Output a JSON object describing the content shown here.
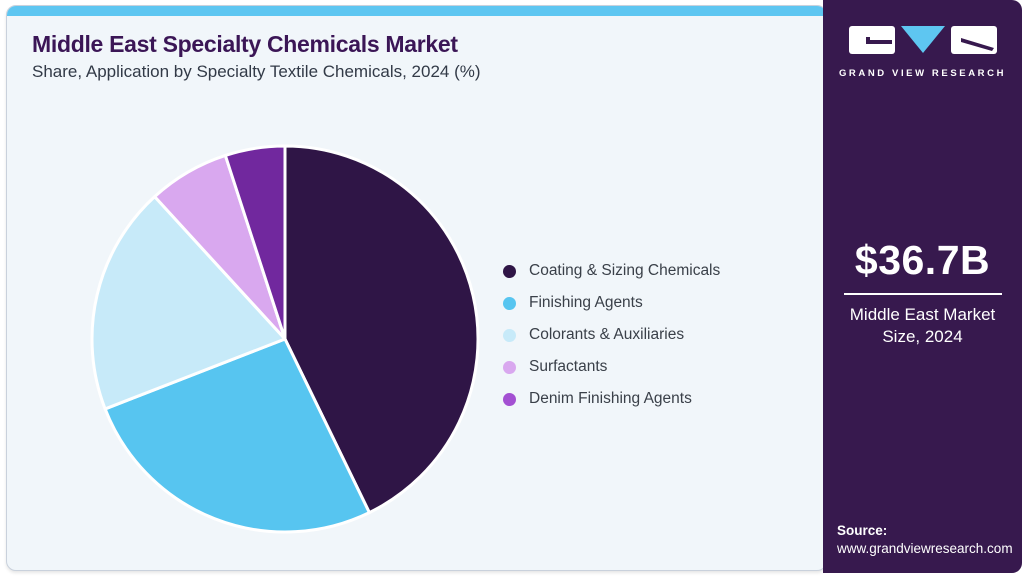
{
  "page": {
    "title": "Middle East Specialty Chemicals Market",
    "subtitle": "Share, Application by Specialty Textile Chemicals, 2024 (%)"
  },
  "colors": {
    "accent_bar": "#5ec6f1",
    "card_bg": "#f1f6fa",
    "card_border": "#c9d1dc",
    "title_text": "#3b1656",
    "subtitle_text": "#323a47",
    "legend_text": "#3a4049",
    "sidebar_bg": "#37194e",
    "sidebar_text": "#ffffff",
    "pie_stroke": "#ffffff"
  },
  "chart_data": {
    "type": "pie",
    "title": "Middle East Specialty Chemicals Market Share, Application by Specialty Textile Chemicals, 2024 (%)",
    "categories": [
      "Coating & Sizing Chemicals",
      "Finishing Agents",
      "Colorants & Auxiliaries",
      "Surfactants",
      "Denim Finishing Agents"
    ],
    "values": [
      42.8,
      26.3,
      19.1,
      6.8,
      5.0
    ],
    "unit": "%",
    "slice_colors": [
      "#2f1546",
      "#57c5f0",
      "#c7eaf9",
      "#d9a8ef",
      "#71289e"
    ],
    "legend_dot_colors": [
      "#2f1546",
      "#57c5f0",
      "#c7eaf9",
      "#d9a8ef",
      "#a350d2"
    ],
    "legend_position": "right",
    "start_angle_deg": 0,
    "direction": "clockwise",
    "data_labels_shown": false
  },
  "sidebar": {
    "logo_text": "GRAND VIEW RESEARCH",
    "market_size_value": "$36.7B",
    "market_size_caption_line1": "Middle East Market",
    "market_size_caption_line2": "Size, 2024",
    "source_label": "Source:",
    "source_url": "www.grandviewresearch.com"
  }
}
